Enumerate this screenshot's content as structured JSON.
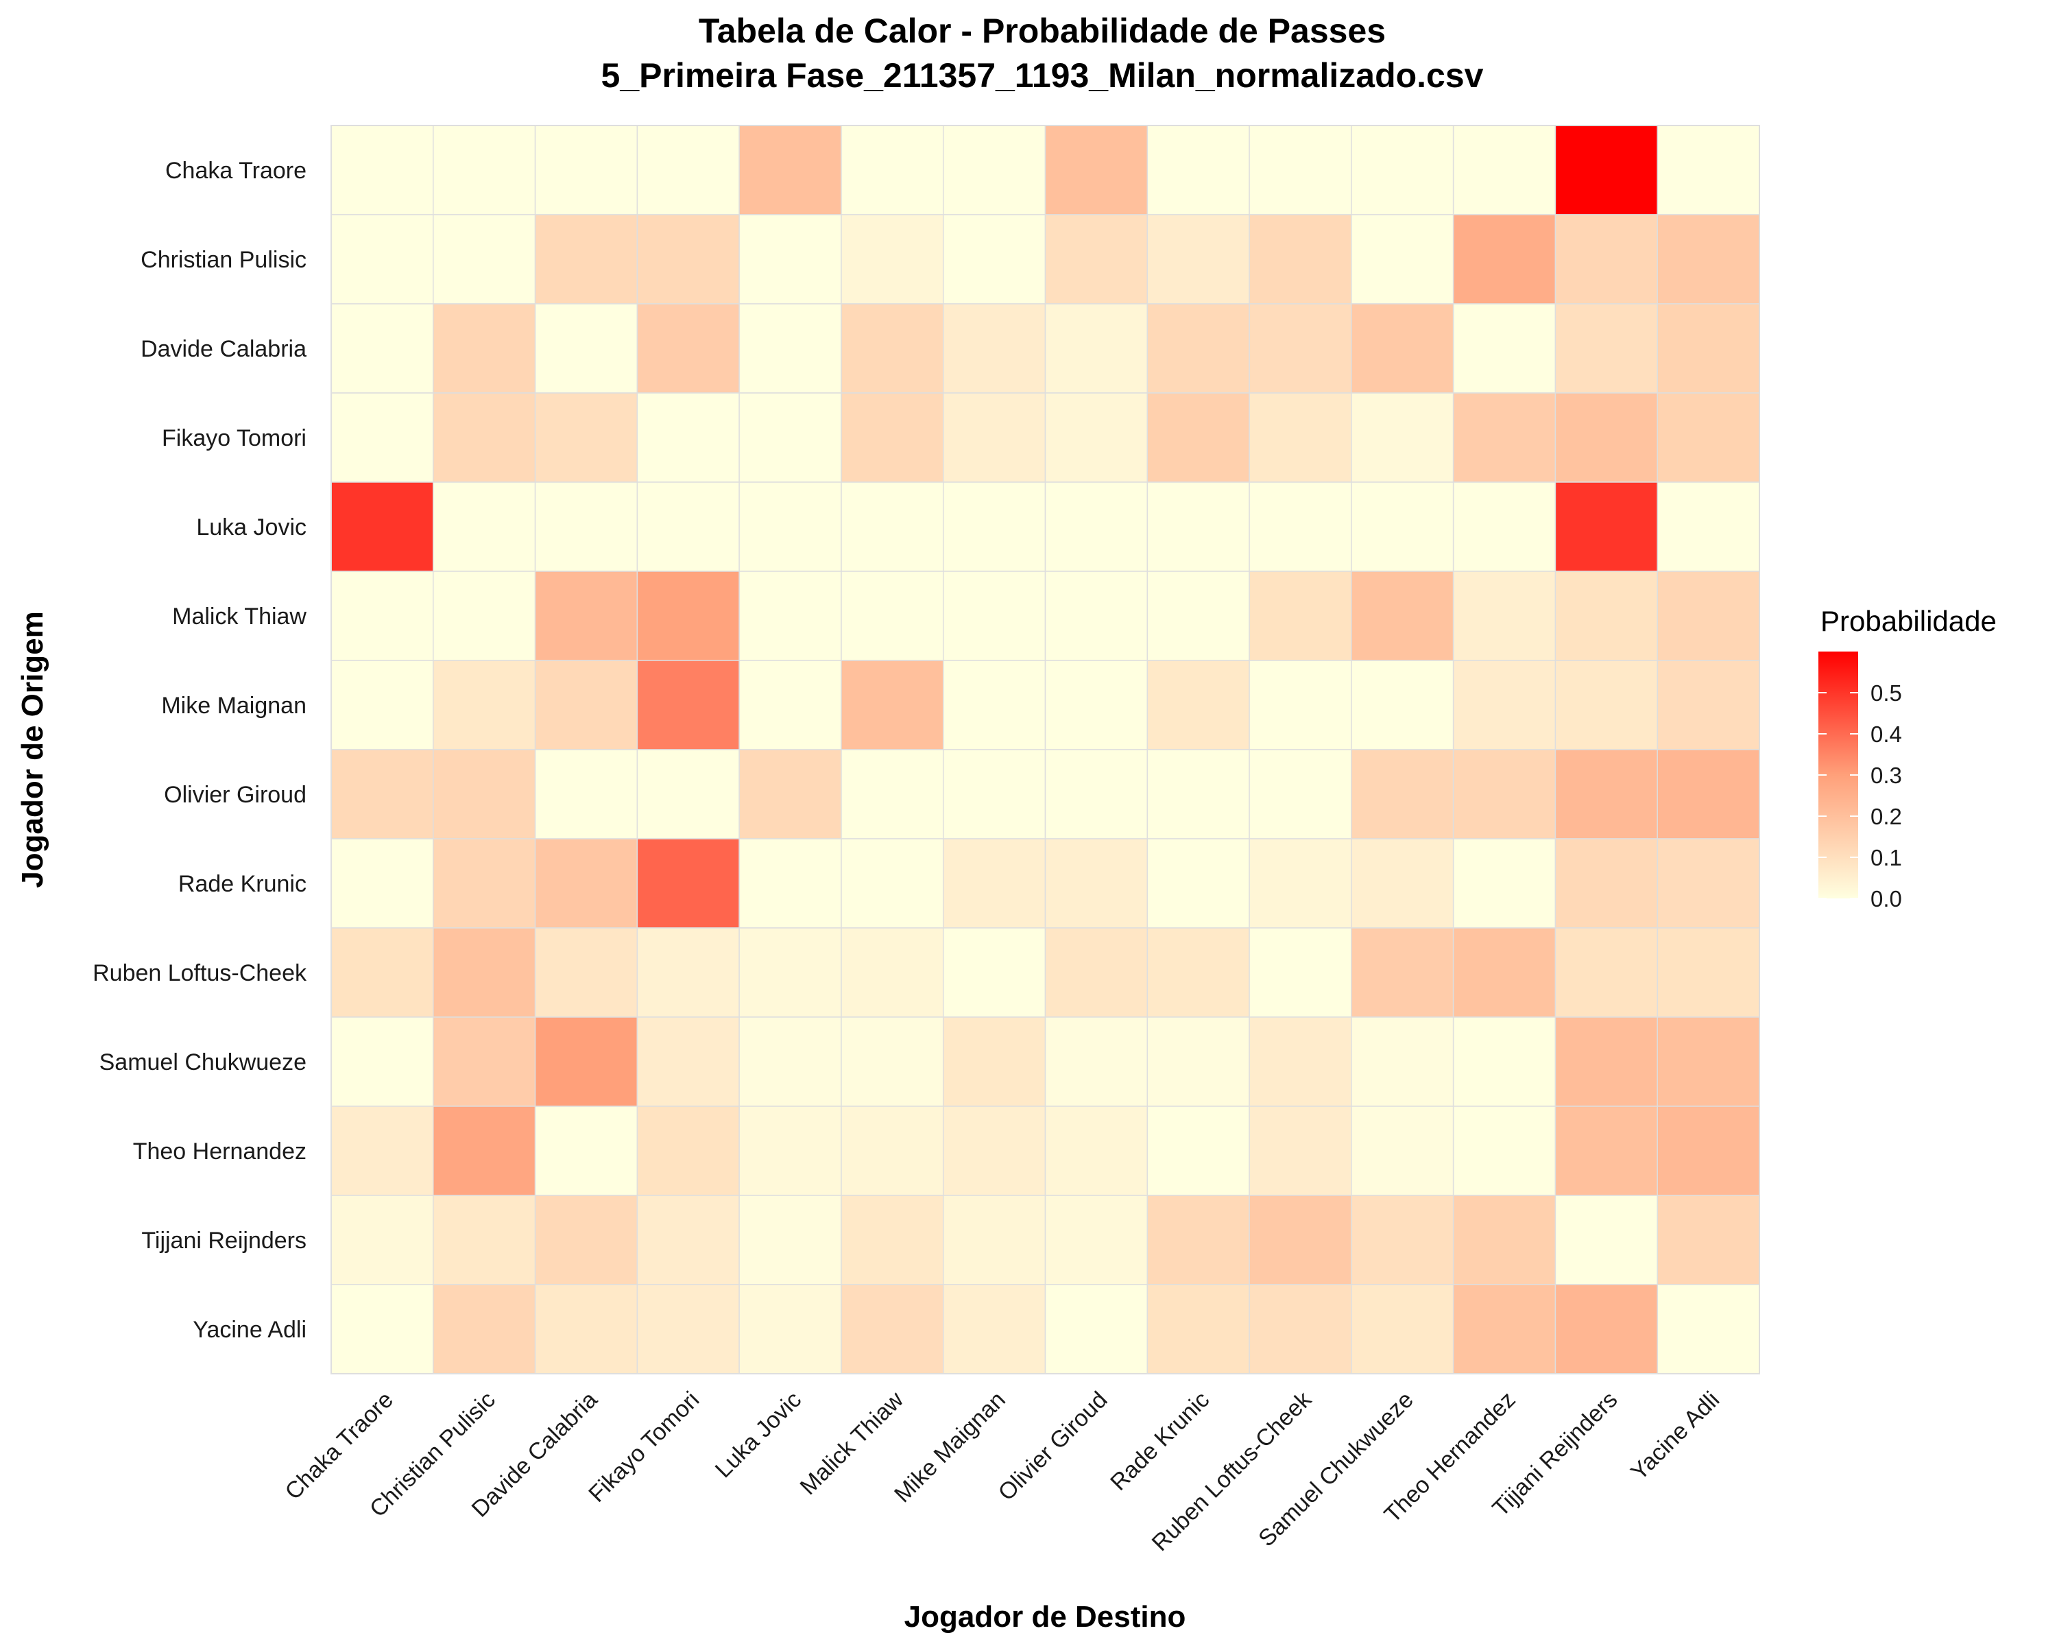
{
  "chart_data": {
    "type": "heatmap",
    "title": "Tabela de Calor - Probabilidade de Passes",
    "subtitle": "5_Primeira Fase_211357_1193_Milan_normalizado.csv",
    "xlabel": "Jogador de Destino",
    "ylabel": "Jogador de Origem",
    "x_categories": [
      "Chaka Traore",
      "Christian Pulisic",
      "Davide Calabria",
      "Fikayo Tomori",
      "Luka Jovic",
      "Malick Thiaw",
      "Mike Maignan",
      "Olivier Giroud",
      "Rade Krunic",
      "Ruben Loftus-Cheek",
      "Samuel Chukwueze",
      "Theo Hernandez",
      "Tijjani Reijnders",
      "Yacine Adli"
    ],
    "y_categories": [
      "Chaka Traore",
      "Christian Pulisic",
      "Davide Calabria",
      "Fikayo Tomori",
      "Luka Jovic",
      "Malick Thiaw",
      "Mike Maignan",
      "Olivier Giroud",
      "Rade Krunic",
      "Ruben Loftus-Cheek",
      "Samuel Chukwueze",
      "Theo Hernandez",
      "Tijjani Reijnders",
      "Yacine Adli"
    ],
    "values": [
      [
        0.0,
        0.0,
        0.0,
        0.0,
        0.2,
        0.0,
        0.0,
        0.2,
        0.0,
        0.0,
        0.0,
        0.0,
        0.6,
        0.0
      ],
      [
        0.0,
        0.0,
        0.12,
        0.12,
        0.0,
        0.03,
        0.0,
        0.1,
        0.06,
        0.12,
        0.0,
        0.26,
        0.13,
        0.17
      ],
      [
        0.0,
        0.13,
        0.0,
        0.16,
        0.0,
        0.12,
        0.06,
        0.03,
        0.12,
        0.11,
        0.17,
        0.0,
        0.1,
        0.14
      ],
      [
        0.0,
        0.12,
        0.1,
        0.0,
        0.0,
        0.12,
        0.05,
        0.03,
        0.15,
        0.07,
        0.02,
        0.16,
        0.19,
        0.14
      ],
      [
        0.5,
        0.0,
        0.0,
        0.0,
        0.0,
        0.0,
        0.0,
        0.0,
        0.0,
        0.0,
        0.0,
        0.0,
        0.5,
        0.0
      ],
      [
        0.0,
        0.0,
        0.22,
        0.29,
        0.0,
        0.0,
        0.0,
        0.0,
        0.0,
        0.09,
        0.19,
        0.05,
        0.09,
        0.13
      ],
      [
        0.0,
        0.07,
        0.12,
        0.36,
        0.0,
        0.2,
        0.0,
        0.0,
        0.07,
        0.0,
        0.0,
        0.06,
        0.07,
        0.11
      ],
      [
        0.12,
        0.13,
        0.0,
        0.0,
        0.12,
        0.0,
        0.0,
        0.0,
        0.0,
        0.0,
        0.13,
        0.13,
        0.22,
        0.23
      ],
      [
        0.0,
        0.13,
        0.18,
        0.41,
        0.0,
        0.0,
        0.05,
        0.05,
        0.0,
        0.03,
        0.05,
        0.0,
        0.12,
        0.11
      ],
      [
        0.09,
        0.19,
        0.08,
        0.04,
        0.02,
        0.03,
        0.0,
        0.08,
        0.07,
        0.0,
        0.16,
        0.19,
        0.09,
        0.09
      ],
      [
        0.0,
        0.16,
        0.3,
        0.06,
        0.01,
        0.01,
        0.07,
        0.01,
        0.01,
        0.06,
        0.01,
        0.0,
        0.21,
        0.2
      ],
      [
        0.06,
        0.28,
        0.0,
        0.09,
        0.02,
        0.03,
        0.05,
        0.03,
        0.0,
        0.06,
        0.01,
        0.0,
        0.2,
        0.22
      ],
      [
        0.02,
        0.07,
        0.12,
        0.06,
        0.01,
        0.07,
        0.03,
        0.02,
        0.12,
        0.17,
        0.1,
        0.15,
        0.0,
        0.13
      ],
      [
        0.0,
        0.13,
        0.07,
        0.06,
        0.02,
        0.11,
        0.05,
        0.0,
        0.09,
        0.1,
        0.07,
        0.19,
        0.23,
        0.0
      ]
    ],
    "color_scale": {
      "low": "#FFFFE0",
      "mid": "#FFA07A",
      "high": "#FF0000",
      "min": 0.0,
      "max": 0.6
    },
    "legend": {
      "title": "Probabilidade",
      "ticks": [
        "0.0",
        "0.1",
        "0.2",
        "0.3",
        "0.4",
        "0.5"
      ],
      "position": "right"
    },
    "grid_color": "#dedede"
  }
}
